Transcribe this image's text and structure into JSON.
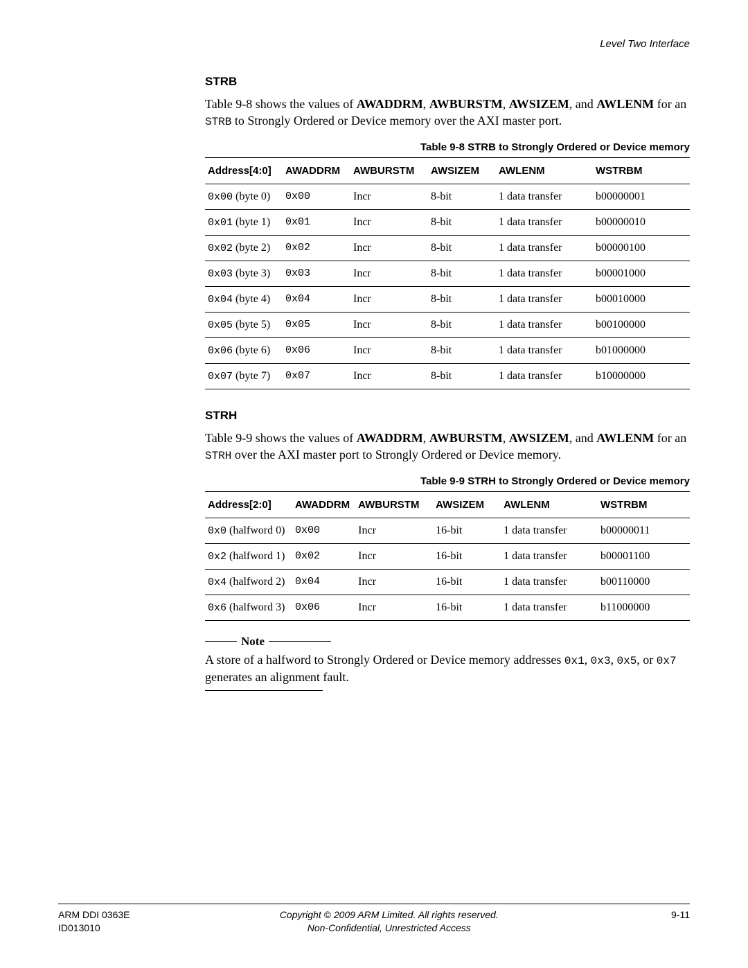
{
  "header": {
    "section_title": "Level Two Interface"
  },
  "strb": {
    "heading": "STRB",
    "para_prefix": "Table 9-8 shows the values of ",
    "para_bold": [
      "AWADDRM",
      "AWBURSTM",
      "AWSIZEM",
      "AWLENM"
    ],
    "para_joins": [
      ", ",
      ", ",
      ", and "
    ],
    "para_mid": " for an ",
    "para_code": "STRB",
    "para_suffix": " to Strongly Ordered or Device memory over the AXI master port.",
    "table_caption": "Table 9-8 STRB to Strongly Ordered or Device memory",
    "columns": [
      "Address[4:0]",
      "AWADDRM",
      "AWBURSTM",
      "AWSIZEM",
      "AWLENM",
      "WSTRBM"
    ],
    "rows": [
      {
        "addr_code": "0x00",
        "addr_label": " (byte 0)",
        "awaddrm": "0x00",
        "awburstm": "Incr",
        "awsizem": "8-bit",
        "awlenm": "1 data transfer",
        "wstrbm": "b00000001"
      },
      {
        "addr_code": "0x01",
        "addr_label": " (byte 1)",
        "awaddrm": "0x01",
        "awburstm": "Incr",
        "awsizem": "8-bit",
        "awlenm": "1 data transfer",
        "wstrbm": "b00000010"
      },
      {
        "addr_code": "0x02",
        "addr_label": " (byte 2)",
        "awaddrm": "0x02",
        "awburstm": "Incr",
        "awsizem": "8-bit",
        "awlenm": "1 data transfer",
        "wstrbm": "b00000100"
      },
      {
        "addr_code": "0x03",
        "addr_label": " (byte 3)",
        "awaddrm": "0x03",
        "awburstm": "Incr",
        "awsizem": "8-bit",
        "awlenm": "1 data transfer",
        "wstrbm": "b00001000"
      },
      {
        "addr_code": "0x04",
        "addr_label": " (byte 4)",
        "awaddrm": "0x04",
        "awburstm": "Incr",
        "awsizem": "8-bit",
        "awlenm": "1 data transfer",
        "wstrbm": "b00010000"
      },
      {
        "addr_code": "0x05",
        "addr_label": " (byte 5)",
        "awaddrm": "0x05",
        "awburstm": "Incr",
        "awsizem": "8-bit",
        "awlenm": "1 data transfer",
        "wstrbm": "b00100000"
      },
      {
        "addr_code": "0x06",
        "addr_label": " (byte 6)",
        "awaddrm": "0x06",
        "awburstm": "Incr",
        "awsizem": "8-bit",
        "awlenm": "1 data transfer",
        "wstrbm": "b01000000"
      },
      {
        "addr_code": "0x07",
        "addr_label": " (byte 7)",
        "awaddrm": "0x07",
        "awburstm": "Incr",
        "awsizem": "8-bit",
        "awlenm": "1 data transfer",
        "wstrbm": "b10000000"
      }
    ]
  },
  "strh": {
    "heading": "STRH",
    "para_prefix": "Table 9-9 shows the values of ",
    "para_bold": [
      "AWADDRM",
      "AWBURSTM",
      "AWSIZEM",
      "AWLENM"
    ],
    "para_joins": [
      ", ",
      ", ",
      ", and "
    ],
    "para_mid": " for an ",
    "para_code": "STRH",
    "para_suffix": " over the AXI master port to Strongly Ordered or Device memory.",
    "table_caption": "Table 9-9 STRH to Strongly Ordered or Device memory",
    "columns": [
      "Address[2:0]",
      "AWADDRM",
      "AWBURSTM",
      "AWSIZEM",
      "AWLENM",
      "WSTRBM"
    ],
    "rows": [
      {
        "addr_code": "0x0",
        "addr_label": " (halfword 0)",
        "awaddrm": "0x00",
        "awburstm": "Incr",
        "awsizem": "16-bit",
        "awlenm": "1 data transfer",
        "wstrbm": "b00000011"
      },
      {
        "addr_code": "0x2",
        "addr_label": " (halfword 1)",
        "awaddrm": "0x02",
        "awburstm": "Incr",
        "awsizem": "16-bit",
        "awlenm": "1 data transfer",
        "wstrbm": "b00001100"
      },
      {
        "addr_code": "0x4",
        "addr_label": " (halfword 2)",
        "awaddrm": "0x04",
        "awburstm": "Incr",
        "awsizem": "16-bit",
        "awlenm": "1 data transfer",
        "wstrbm": "b00110000"
      },
      {
        "addr_code": "0x6",
        "addr_label": " (halfword 3)",
        "awaddrm": "0x06",
        "awburstm": "Incr",
        "awsizem": "16-bit",
        "awlenm": "1 data transfer",
        "wstrbm": "b11000000"
      }
    ]
  },
  "note": {
    "label": "Note",
    "text_pre": "A store of a halfword to Strongly Ordered or Device memory addresses ",
    "addrs": [
      "0x1",
      "0x3",
      "0x5",
      "0x7"
    ],
    "joins": [
      ", ",
      ", ",
      ", or "
    ],
    "text_post": " generates an alignment fault."
  },
  "footer": {
    "left_line1": "ARM DDI 0363E",
    "left_line2": "ID013010",
    "center_line1": "Copyright © 2009 ARM Limited. All rights reserved.",
    "center_line2": "Non-Confidential, Unrestricted Access",
    "right": "9-11"
  }
}
